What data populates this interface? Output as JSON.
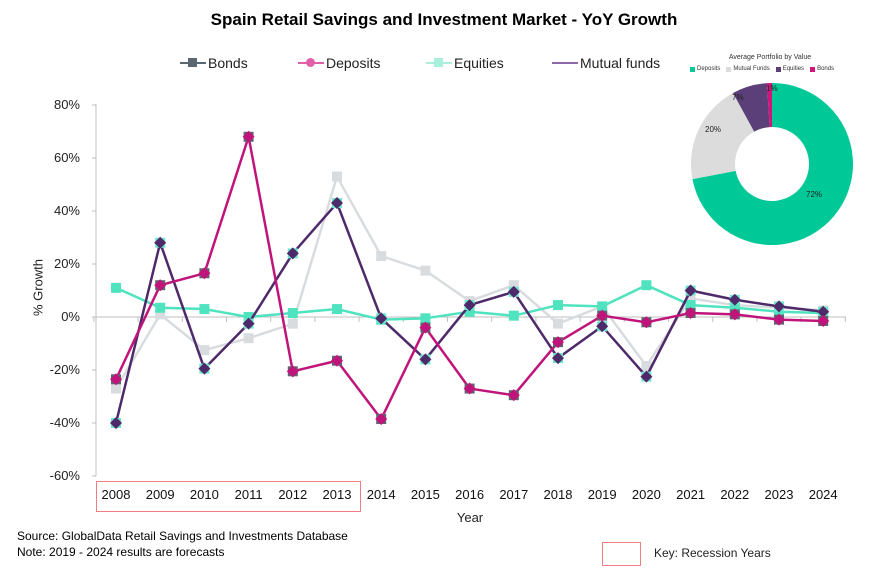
{
  "chart_data": [
    {
      "type": "line",
      "title": "Spain Retail Savings and Investment Market - YoY Growth",
      "xlabel": "Year",
      "ylabel": "% Growth",
      "ylim": [
        -60,
        80
      ],
      "yticks": [
        "80%",
        "60%",
        "40%",
        "20%",
        "0%",
        "-20%",
        "-40%",
        "-60%"
      ],
      "ytick_values": [
        80,
        60,
        40,
        20,
        0,
        -20,
        -40,
        -60
      ],
      "categories": [
        "2008",
        "2009",
        "2010",
        "2011",
        "2012",
        "2013",
        "2014",
        "2015",
        "2016",
        "2017",
        "2018",
        "2019",
        "2020",
        "2021",
        "2022",
        "2023",
        "2024"
      ],
      "legend_position": "top",
      "legend": [
        {
          "name": "Bonds",
          "color": "#5b6770",
          "marker": "square"
        },
        {
          "name": "Deposits",
          "color": "#e060a8",
          "marker": "circle"
        },
        {
          "name": "Equities",
          "color": "#a8f0dc",
          "marker": "square"
        },
        {
          "name": "Mutual funds",
          "color": "#8a6aa8",
          "marker": "none"
        }
      ],
      "series": [
        {
          "name": "Bonds",
          "color": "#d8dcdf",
          "marker": "square",
          "values": [
            -27,
            1,
            -12.5,
            -8,
            -2.5,
            53,
            23,
            17.5,
            6,
            12,
            -2.5,
            4,
            -18.5,
            7,
            4.5,
            3.5,
            2.5
          ]
        },
        {
          "name": "Equities",
          "color": "#4fe3bf",
          "marker": "square",
          "values": [
            11,
            3.5,
            3,
            0,
            1.5,
            3,
            -1,
            -0.5,
            2,
            0.5,
            4.5,
            4,
            12,
            4.5,
            3.5,
            2,
            1.5
          ]
        },
        {
          "name": "Mutual funds",
          "color": "#4e2a6a",
          "marker": "diamond",
          "values": [
            -40,
            28,
            -19.5,
            -2.5,
            24,
            43,
            -0.5,
            -16,
            4.5,
            9.5,
            -15.5,
            -3.5,
            -22.5,
            10,
            6.5,
            4,
            2
          ]
        },
        {
          "name": "Deposits",
          "color": "#c0147a",
          "marker": "diamond",
          "values": [
            -23.5,
            12,
            16.5,
            68,
            -20.5,
            -16.5,
            -38.5,
            -4,
            -27,
            -29.5,
            -9.5,
            0.5,
            -2,
            1.5,
            1,
            -1,
            -1.5
          ]
        }
      ],
      "annotations": {
        "recession_years": [
          "2008",
          "2009",
          "2010",
          "2011",
          "2012",
          "2013"
        ],
        "key_label": "Key: Recession Years"
      }
    },
    {
      "type": "pie",
      "title": "Average Portfolio by Value",
      "categories": [
        "Deposits",
        "Mutual Funds",
        "Equities",
        "Bonds"
      ],
      "values": [
        72,
        20,
        7,
        1
      ],
      "labels": [
        "72%",
        "20%",
        "7%",
        "1%"
      ],
      "colors": [
        "#00c896",
        "#dcdcdc",
        "#5a3f78",
        "#d0147c"
      ],
      "legend_position": "top"
    }
  ],
  "footer": {
    "source": "Source: GlobalData Retail Savings and Investments Database",
    "note": "Note: 2019 - 2024 results are forecasts"
  }
}
